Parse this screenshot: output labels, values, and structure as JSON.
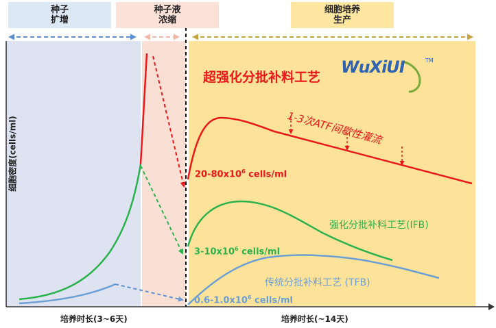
{
  "stages": {
    "seed_expansion": {
      "line1": "种子",
      "line2": "扩增"
    },
    "seed_concentration": {
      "line1": "种子液",
      "line2": "浓缩"
    },
    "cell_production": {
      "line1": "细胞培养",
      "line2": "生产"
    }
  },
  "y_axis_label": "细胞密度(cells/ml)",
  "x_axis": {
    "left_label": "培养时长(3~6天)",
    "right_label": "培养时长(~14天)"
  },
  "title": "超强化分批补料工艺",
  "logo": {
    "text_blue": "WuXi",
    "text_accent": "UI",
    "tm": "TM"
  },
  "annotations": {
    "atf_note": "1-3次ATF间歇性灌流",
    "red_density": {
      "prefix": "20-80x10",
      "exp": "6",
      "suffix": " cells/ml"
    },
    "green_density": {
      "prefix": "3-10x10",
      "exp": "6",
      "suffix": " cells/ml"
    },
    "blue_density": {
      "prefix": "0.6-1.0x10",
      "exp": "6",
      "suffix": " cells/ml"
    },
    "ifb_label": "强化分批补料工艺(IFB)",
    "tfb_label": "传统分批补料工艺 (TFB)"
  },
  "colors": {
    "red": "#e8181b",
    "green": "#2bb14c",
    "blue": "#6b9fd4",
    "expansion_bg": "#dde3f1",
    "concentration_bg": "#f9dfd4",
    "production_bg": "#fde39a",
    "stage_box_blue": "#dde8f5",
    "stage_box_pink": "#fbe1d8",
    "stage_box_yellow": "#fde6a0"
  }
}
